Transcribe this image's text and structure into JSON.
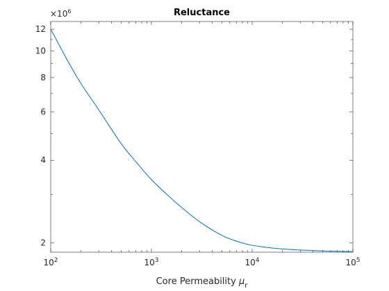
{
  "chart_data": {
    "type": "line",
    "title": "Reluctance",
    "xlabel": "Core Permeability",
    "xlabel_symbol": "μ",
    "xlabel_subscript": "r",
    "x_scale": "log",
    "y_scale": "log",
    "xlim": [
      100,
      100000
    ],
    "ylim": [
      1850000,
      12800000
    ],
    "x_ticks": [
      {
        "value": 100,
        "base": "10",
        "exp": "2"
      },
      {
        "value": 1000,
        "base": "10",
        "exp": "3"
      },
      {
        "value": 10000,
        "base": "10",
        "exp": "4"
      },
      {
        "value": 100000,
        "base": "10",
        "exp": "5"
      }
    ],
    "y_ticks": [
      {
        "value": 2000000,
        "label": "2"
      },
      {
        "value": 4000000,
        "label": "4"
      },
      {
        "value": 6000000,
        "label": "6"
      },
      {
        "value": 8000000,
        "label": "8"
      },
      {
        "value": 10000000,
        "label": "10"
      },
      {
        "value": 12000000,
        "label": "12"
      }
    ],
    "y_exponent_label": {
      "prefix": "×10",
      "exp": "6"
    },
    "grid": false,
    "series": [
      {
        "color": "#0072bd",
        "x": [
          100,
          150,
          200,
          300,
          500,
          700,
          1000,
          1500,
          2000,
          3000,
          5000,
          7000,
          10000,
          20000,
          50000,
          100000
        ],
        "y": [
          12000000,
          9100000,
          7600000,
          6100000,
          4600000,
          3950000,
          3400000,
          2950000,
          2690000,
          2390000,
          2130000,
          2030000,
          1960000,
          1900000,
          1870000,
          1860000
        ]
      }
    ]
  }
}
